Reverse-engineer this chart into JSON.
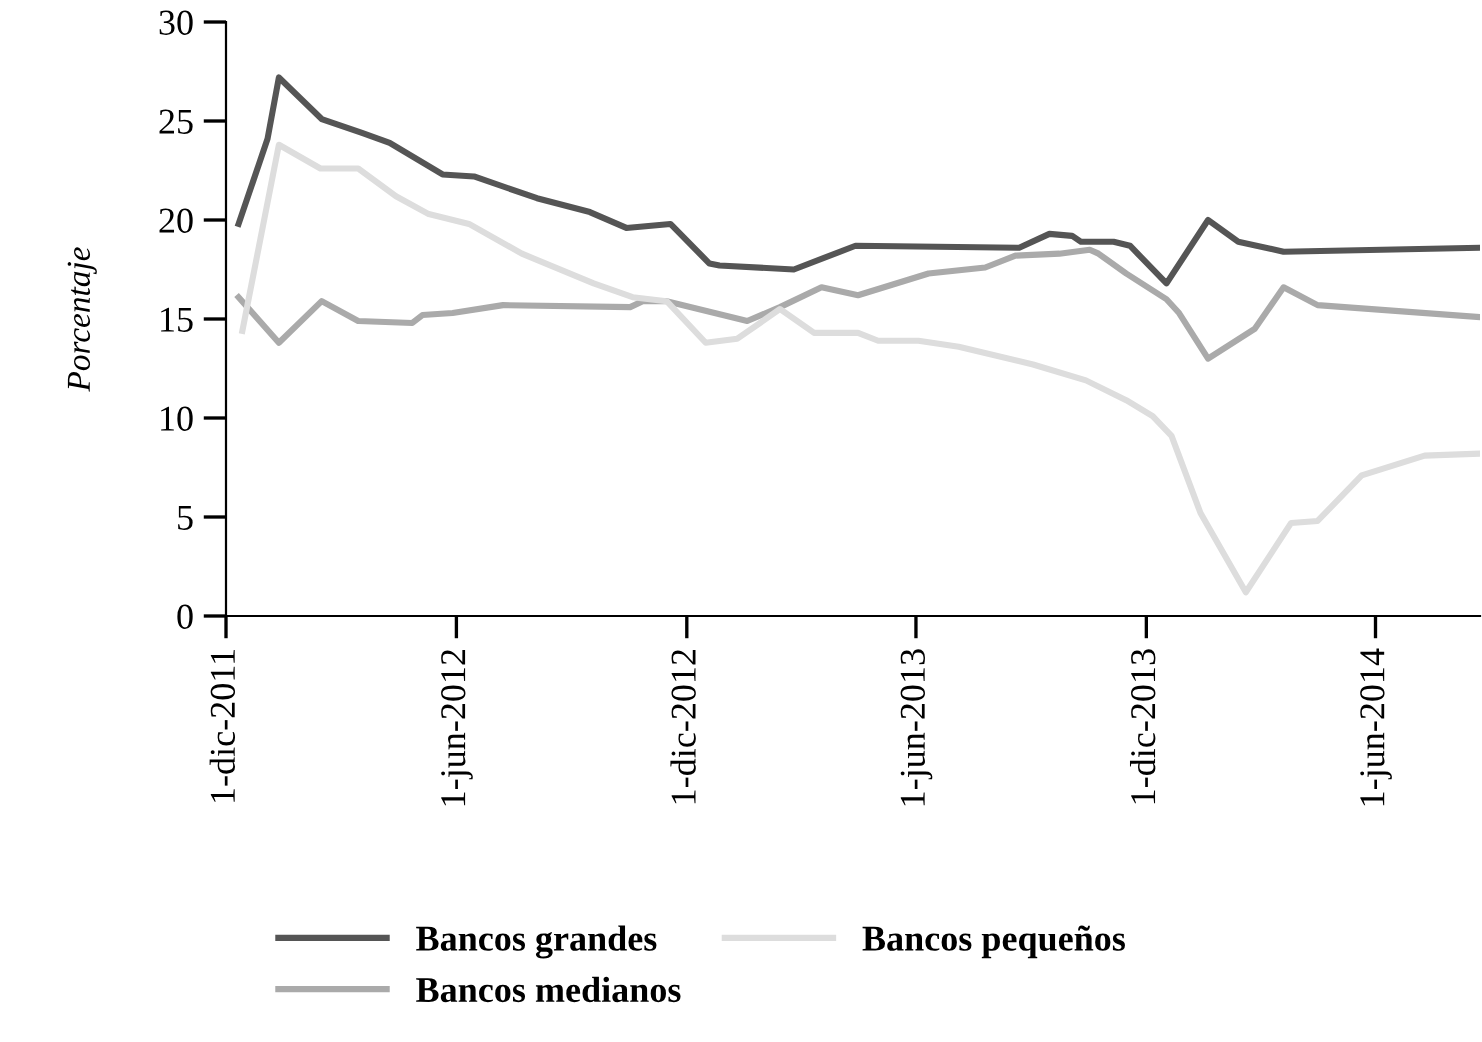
{
  "chart_data": {
    "type": "line",
    "ylabel": "Porcentaje",
    "xlim": [
      "2011-12-01",
      "2014-08-23"
    ],
    "xticks": [
      {
        "value": "2011-12-01",
        "label": "1-dic-2011"
      },
      {
        "value": "2012-06-01",
        "label": "1-jun-2012"
      },
      {
        "value": "2012-12-01",
        "label": "1-dic-2012"
      },
      {
        "value": "2013-06-01",
        "label": "1-jun-2013"
      },
      {
        "value": "2013-12-01",
        "label": "1-dic-2013"
      },
      {
        "value": "2014-06-01",
        "label": "1-jun-2014"
      }
    ],
    "ylim": [
      0,
      30
    ],
    "yticks": [
      0,
      5,
      10,
      15,
      20,
      25,
      30
    ],
    "grid": false,
    "legend": "bottom",
    "marker": "none",
    "line_style": "solid",
    "series": [
      {
        "name": "Bancos grandes",
        "color": "#555555",
        "x": [
          "2011-12-11",
          "2012-01-03",
          "2012-01-12",
          "2012-02-15",
          "2012-03-18",
          "2012-04-09",
          "2012-05-21",
          "2012-06-15",
          "2012-08-04",
          "2012-09-15",
          "2012-10-14",
          "2012-11-18",
          "2012-12-19",
          "2012-12-27",
          "2013-02-24",
          "2013-04-14",
          "2013-08-22",
          "2013-09-15",
          "2013-10-03",
          "2013-10-10",
          "2013-11-05",
          "2013-11-18",
          "2013-12-17",
          "2014-01-19",
          "2014-02-12",
          "2014-03-20",
          "2014-08-22"
        ],
        "values": [
          19.8,
          24.1,
          27.2,
          25.1,
          24.4,
          23.9,
          22.3,
          22.2,
          21.1,
          20.4,
          19.6,
          19.8,
          17.8,
          17.7,
          17.5,
          18.7,
          18.6,
          19.3,
          19.2,
          18.9,
          18.9,
          18.7,
          16.8,
          20.0,
          18.9,
          18.4,
          18.6
        ]
      },
      {
        "name": "Bancos medianos",
        "color": "#aaaaaa",
        "x": [
          "2011-12-11",
          "2012-01-12",
          "2012-02-15",
          "2012-03-15",
          "2012-04-27",
          "2012-05-05",
          "2012-05-29",
          "2012-07-08",
          "2012-10-17",
          "2012-10-27",
          "2012-11-15",
          "2013-01-18",
          "2013-02-13",
          "2013-03-18",
          "2013-04-16",
          "2013-06-11",
          "2013-07-26",
          "2013-08-19",
          "2013-09-23",
          "2013-10-17",
          "2013-10-24",
          "2013-11-15",
          "2013-12-17",
          "2013-12-27",
          "2014-01-19",
          "2014-02-25",
          "2014-03-20",
          "2014-04-16",
          "2014-08-22"
        ],
        "values": [
          16.1,
          13.8,
          15.9,
          14.9,
          14.8,
          15.2,
          15.3,
          15.7,
          15.6,
          15.9,
          15.9,
          14.9,
          15.6,
          16.6,
          16.2,
          17.3,
          17.6,
          18.2,
          18.3,
          18.5,
          18.3,
          17.3,
          16.0,
          15.3,
          13.0,
          14.5,
          16.6,
          15.7,
          15.1
        ]
      },
      {
        "name": "Bancos pequeños",
        "color": "#dddddd",
        "x": [
          "2011-12-14",
          "2012-01-12",
          "2012-02-14",
          "2012-03-15",
          "2012-04-14",
          "2012-05-10",
          "2012-06-11",
          "2012-07-23",
          "2012-09-18",
          "2012-10-19",
          "2012-11-15",
          "2012-12-16",
          "2013-01-10",
          "2013-02-13",
          "2013-03-12",
          "2013-04-16",
          "2013-05-02",
          "2013-06-03",
          "2013-07-05",
          "2013-09-02",
          "2013-10-14",
          "2013-11-15",
          "2013-12-06",
          "2013-12-21",
          "2014-01-13",
          "2014-02-18",
          "2014-03-26",
          "2014-04-16",
          "2014-05-21",
          "2014-07-10",
          "2014-08-22"
        ],
        "values": [
          14.4,
          23.8,
          22.6,
          22.6,
          21.2,
          20.3,
          19.8,
          18.3,
          16.8,
          16.1,
          15.9,
          13.8,
          14.0,
          15.5,
          14.3,
          14.3,
          13.9,
          13.9,
          13.6,
          12.7,
          11.9,
          10.9,
          10.1,
          9.1,
          5.2,
          1.2,
          4.7,
          4.8,
          7.1,
          8.1,
          8.2
        ]
      }
    ]
  }
}
